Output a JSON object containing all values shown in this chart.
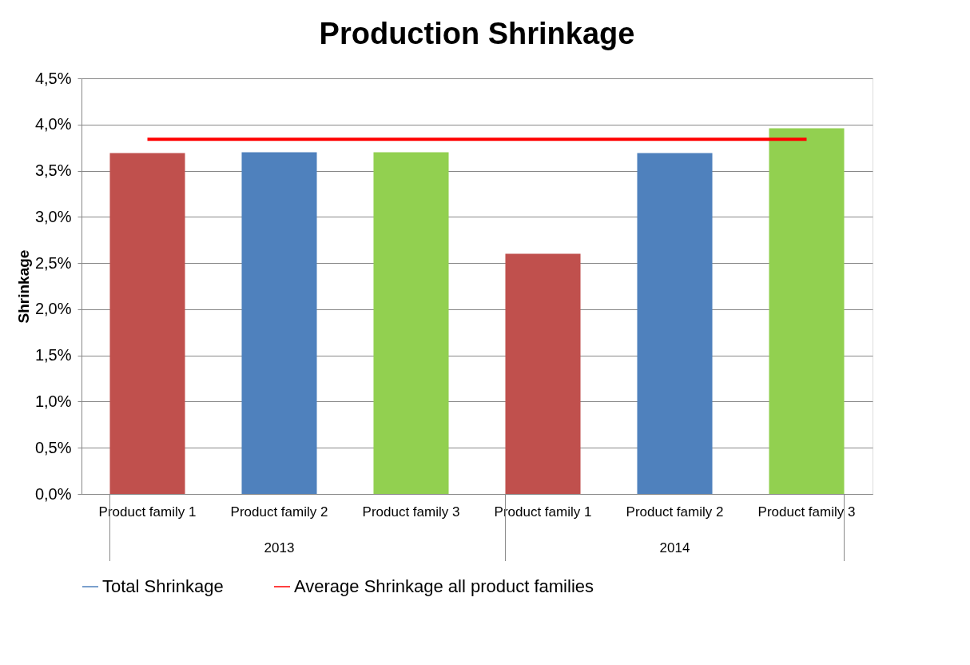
{
  "chart_data": {
    "type": "bar",
    "title": "Production Shrinkage",
    "ylabel": "Shrinkage",
    "categories": [
      "Product family 1",
      "Product family 2",
      "Product family 3",
      "Product family 1",
      "Product family 2",
      "Product family 3"
    ],
    "series": [
      {
        "name": "Total Shrinkage",
        "color": "#4f81bd",
        "colors": [
          "#c0504d",
          "#4f81bd",
          "#92d050",
          "#c0504d",
          "#4f81bd",
          "#92d050"
        ],
        "values": [
          3.69,
          3.7,
          3.7,
          2.6,
          3.69,
          3.96
        ]
      },
      {
        "name": "Average Shrinkage all product families",
        "type": "line",
        "color": "#ff0000",
        "values": [
          3.84,
          3.84,
          3.84,
          3.84,
          3.84,
          3.84
        ]
      }
    ],
    "annotations": [
      "2013",
      "2014"
    ],
    "ylim": [
      0,
      4.5
    ],
    "yticks": [
      {
        "value": 0,
        "label": "0,0%"
      },
      {
        "value": 0.5,
        "label": "0,5%"
      },
      {
        "value": 1,
        "label": "1,0%"
      },
      {
        "value": 1.5,
        "label": "1,5%"
      },
      {
        "value": 2,
        "label": "2,0%"
      },
      {
        "value": 2.5,
        "label": "2,5%"
      },
      {
        "value": 3,
        "label": "3,0%"
      },
      {
        "value": 3.5,
        "label": "3,5%"
      },
      {
        "value": 4,
        "label": "4,0%"
      },
      {
        "value": 4.5,
        "label": "4,5%"
      }
    ],
    "grid": "y",
    "legend": "bottom"
  }
}
